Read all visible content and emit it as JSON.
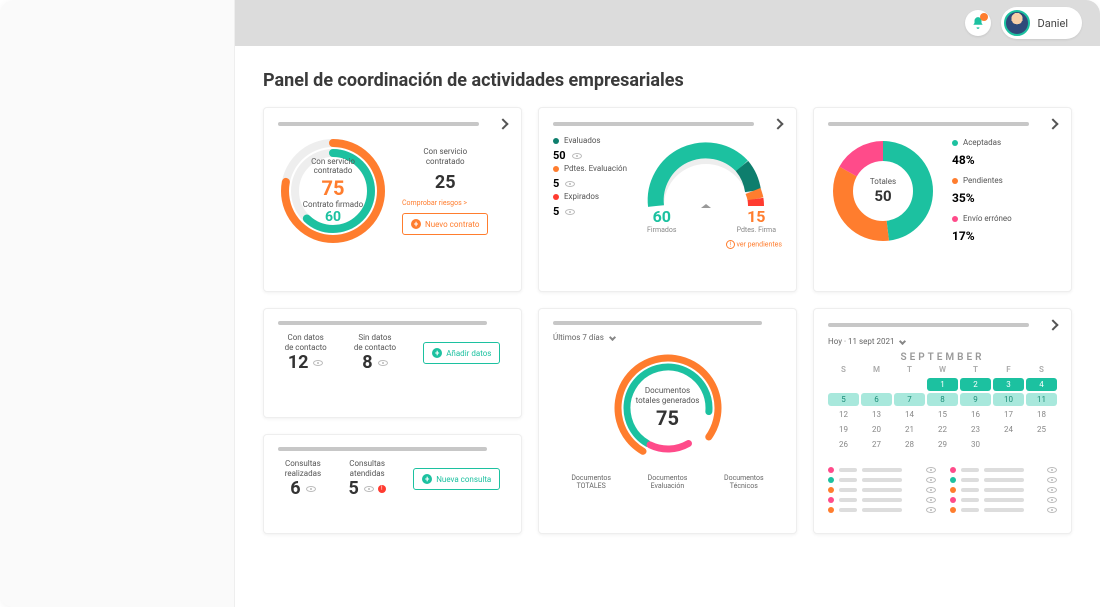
{
  "user": {
    "name": "Daniel"
  },
  "page_title": "Panel de coordinación de actividades empresariales",
  "colors": {
    "teal": "#1cc1a0",
    "orange": "#ff7d2e",
    "pink": "#ff4b8a",
    "grey": "#c7c7c7",
    "dark_teal": "#0e7e6d",
    "red": "#ff3b30"
  },
  "card1": {
    "service_label": "Con servicio\ncontratado",
    "service_value": "75",
    "contract_label": "Contrato firmado",
    "contract_value": "60",
    "right_label": "Con servicio\ncontratado",
    "right_value": "25",
    "risks_link": "Comprobar riesgos >",
    "button": "Nuevo contrato",
    "ring": {
      "outer_pct": 0.78,
      "inner_pct": 0.62
    }
  },
  "card2": {
    "legend": [
      {
        "color": "#0e7e6d",
        "label": "Evaluados",
        "value": "50"
      },
      {
        "color": "#ff7d2e",
        "label": "Pdtes. Evaluación",
        "value": "5"
      },
      {
        "color": "#ff3b30",
        "label": "Expirados",
        "value": "5"
      }
    ],
    "gauge_left_value": "60",
    "gauge_left_label": "Firmados",
    "gauge_right_value": "15",
    "gauge_right_label": "Pdtes. Firma",
    "pending_link": "ver pendientes"
  },
  "card3": {
    "center_label": "Totales",
    "center_value": "50",
    "legend": [
      {
        "color": "#1cc1a0",
        "label": "Aceptadas",
        "value": "48%"
      },
      {
        "color": "#ff7d2e",
        "label": "Pendientes",
        "value": "35%"
      },
      {
        "color": "#ff4b8a",
        "label": "Envío erróneo",
        "value": "17%"
      }
    ],
    "slices": [
      0.48,
      0.35,
      0.17
    ]
  },
  "card4": {
    "with_label": "Con datos\nde contacto",
    "with_value": "12",
    "without_label": "Sin datos\nde contacto",
    "without_value": "8",
    "button": "Añadir datos"
  },
  "card5": {
    "done_label": "Consultas\nrealizadas",
    "done_value": "6",
    "attended_label": "Consultas\natendidas",
    "attended_value": "5",
    "button": "Nueva consulta"
  },
  "card6": {
    "filter": "Últimos 7 días",
    "center_label": "Documentos\ntotales generados",
    "center_value": "75",
    "tabs": [
      "Documentos\nTOTALES",
      "Documentos\nEvaluación",
      "Documentos\nTécnicos"
    ]
  },
  "card7": {
    "date_label": "Hoy · 11 sept 2021",
    "month": "SEPTEMBER",
    "week_head": [
      "S",
      "M",
      "T",
      "W",
      "T",
      "F",
      "S"
    ],
    "rows": [
      [
        "",
        "",
        "",
        "1",
        "2",
        "3",
        "4"
      ],
      [
        "5",
        "6",
        "7",
        "8",
        "9",
        "10",
        "11"
      ],
      [
        "12",
        "13",
        "14",
        "15",
        "16",
        "17",
        "18"
      ],
      [
        "19",
        "20",
        "21",
        "22",
        "23",
        "24",
        "25"
      ],
      [
        "26",
        "27",
        "28",
        "29",
        "30",
        "",
        ""
      ]
    ],
    "hl1": [
      "1",
      "2",
      "3",
      "4"
    ],
    "hl2": [
      "5",
      "6",
      "7",
      "8",
      "9",
      "10",
      "11"
    ],
    "list_dots": [
      "#ff4b8a",
      "#1cc1a0",
      "#ff7d2e",
      "#ff4b8a",
      "#ff7d2e"
    ]
  }
}
